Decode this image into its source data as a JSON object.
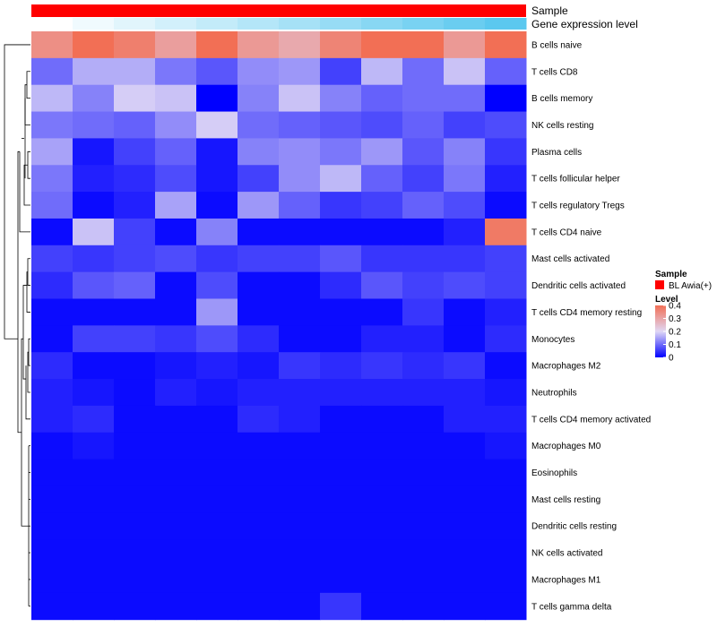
{
  "chart_data": {
    "type": "heatmap",
    "annotations": {
      "top_label": "Sample",
      "bottom_label": "Gene expression level",
      "top_color": "#ff0000",
      "bottom_gradient": [
        "#ffffff",
        "#5bc8ef"
      ]
    },
    "rows": [
      "B cells naive",
      "T cells CD8",
      "B cells memory",
      "NK cells resting",
      "Plasma cells",
      "T cells follicular helper",
      "T cells regulatory  Tregs",
      "T cells CD4 naive",
      "Mast cells activated",
      "Dendritic cells activated",
      "T cells CD4 memory resting",
      "Monocytes",
      "Macrophages M2",
      "Neutrophils",
      "T cells CD4 memory activated",
      "Macrophages M0",
      "Eosinophils",
      "Mast cells resting",
      "Dendritic cells resting",
      "NK cells activated",
      "Macrophages M1",
      "T cells gamma delta"
    ],
    "values": [
      [
        0.34,
        0.4,
        0.37,
        0.31,
        0.4,
        0.32,
        0.29,
        0.36,
        0.4,
        0.4,
        0.32,
        0.4
      ],
      [
        0.1,
        0.16,
        0.16,
        0.11,
        0.08,
        0.13,
        0.14,
        0.06,
        0.17,
        0.1,
        0.18,
        0.09
      ],
      [
        0.17,
        0.12,
        0.19,
        0.18,
        0.0,
        0.12,
        0.18,
        0.12,
        0.09,
        0.1,
        0.1,
        0.0
      ],
      [
        0.11,
        0.1,
        0.09,
        0.13,
        0.19,
        0.1,
        0.09,
        0.08,
        0.07,
        0.09,
        0.06,
        0.07
      ],
      [
        0.15,
        0.02,
        0.06,
        0.09,
        0.02,
        0.12,
        0.13,
        0.11,
        0.14,
        0.08,
        0.12,
        0.05
      ],
      [
        0.11,
        0.03,
        0.04,
        0.07,
        0.02,
        0.06,
        0.13,
        0.17,
        0.09,
        0.06,
        0.11,
        0.03
      ],
      [
        0.1,
        0.01,
        0.03,
        0.15,
        0.01,
        0.14,
        0.09,
        0.05,
        0.06,
        0.09,
        0.07,
        0.01
      ],
      [
        0.01,
        0.18,
        0.06,
        0.01,
        0.12,
        0.01,
        0.01,
        0.01,
        0.01,
        0.01,
        0.03,
        0.38
      ],
      [
        0.06,
        0.05,
        0.06,
        0.07,
        0.05,
        0.06,
        0.06,
        0.08,
        0.05,
        0.05,
        0.05,
        0.06
      ],
      [
        0.04,
        0.08,
        0.09,
        0.01,
        0.07,
        0.01,
        0.01,
        0.04,
        0.08,
        0.06,
        0.07,
        0.06
      ],
      [
        0.01,
        0.01,
        0.01,
        0.01,
        0.14,
        0.01,
        0.01,
        0.01,
        0.01,
        0.05,
        0.01,
        0.03
      ],
      [
        0.01,
        0.06,
        0.06,
        0.05,
        0.07,
        0.04,
        0.01,
        0.01,
        0.03,
        0.03,
        0.01,
        0.04
      ],
      [
        0.04,
        0.01,
        0.01,
        0.02,
        0.03,
        0.02,
        0.05,
        0.04,
        0.05,
        0.04,
        0.05,
        0.01
      ],
      [
        0.03,
        0.02,
        0.01,
        0.03,
        0.02,
        0.03,
        0.03,
        0.03,
        0.03,
        0.03,
        0.03,
        0.02
      ],
      [
        0.03,
        0.04,
        0.01,
        0.01,
        0.01,
        0.04,
        0.03,
        0.01,
        0.01,
        0.01,
        0.03,
        0.03
      ],
      [
        0.01,
        0.02,
        0.01,
        0.01,
        0.01,
        0.01,
        0.01,
        0.01,
        0.01,
        0.01,
        0.01,
        0.02
      ],
      [
        0.01,
        0.01,
        0.01,
        0.01,
        0.01,
        0.01,
        0.01,
        0.01,
        0.01,
        0.01,
        0.01,
        0.01
      ],
      [
        0.01,
        0.01,
        0.01,
        0.01,
        0.01,
        0.01,
        0.01,
        0.01,
        0.01,
        0.01,
        0.01,
        0.01
      ],
      [
        0.01,
        0.01,
        0.01,
        0.01,
        0.01,
        0.01,
        0.01,
        0.01,
        0.01,
        0.01,
        0.01,
        0.01
      ],
      [
        0.01,
        0.01,
        0.01,
        0.01,
        0.01,
        0.01,
        0.01,
        0.01,
        0.01,
        0.01,
        0.01,
        0.01
      ],
      [
        0.01,
        0.01,
        0.01,
        0.01,
        0.01,
        0.01,
        0.01,
        0.01,
        0.01,
        0.01,
        0.01,
        0.01
      ],
      [
        0.01,
        0.01,
        0.01,
        0.01,
        0.01,
        0.01,
        0.01,
        0.05,
        0.01,
        0.01,
        0.01,
        0.01
      ]
    ],
    "color_scale": {
      "range": [
        0,
        0.4
      ],
      "stops": [
        {
          "value": 0,
          "color": "#0000ff"
        },
        {
          "value": 0.2,
          "color": "#e0d8f5"
        },
        {
          "value": 0.4,
          "color": "#f26f55"
        }
      ],
      "ticks": [
        "0.4",
        "0.3",
        "0.2",
        "0.1",
        "0"
      ]
    },
    "legend": {
      "sample_title": "Sample",
      "sample_entry": "BL Awia(+)",
      "sample_color": "#ff0000",
      "level_title": "Level",
      "placement": "right"
    }
  }
}
